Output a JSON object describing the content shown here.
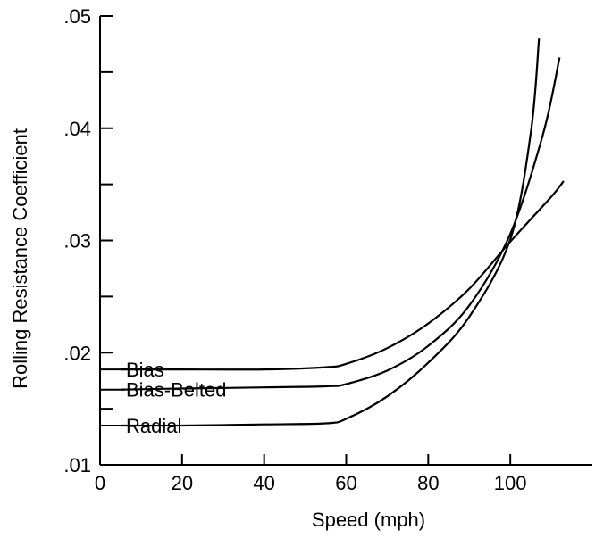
{
  "chart_data": {
    "type": "line",
    "xlabel": "Speed (mph)",
    "ylabel": "Rolling Resistance Coefficient",
    "xlim": [
      0,
      120
    ],
    "ylim": [
      0.01,
      0.05
    ],
    "x_ticks": [
      {
        "value": 0,
        "label": "0"
      },
      {
        "value": 20,
        "label": "20"
      },
      {
        "value": 40,
        "label": "40"
      },
      {
        "value": 60,
        "label": "60"
      },
      {
        "value": 80,
        "label": "80"
      },
      {
        "value": 100,
        "label": "100"
      }
    ],
    "y_ticks": [
      {
        "value": 0.01,
        "label": ".01"
      },
      {
        "value": 0.015,
        "label": ""
      },
      {
        "value": 0.02,
        "label": ".02"
      },
      {
        "value": 0.025,
        "label": ""
      },
      {
        "value": 0.03,
        "label": ".03"
      },
      {
        "value": 0.035,
        "label": ""
      },
      {
        "value": 0.04,
        "label": ".04"
      },
      {
        "value": 0.045,
        "label": ""
      },
      {
        "value": 0.05,
        "label": ".05"
      }
    ],
    "grid": false,
    "legend": "inline labels at left",
    "series": [
      {
        "name": "Bias",
        "x": [
          5,
          20,
          40,
          55,
          60,
          70,
          80,
          90,
          100,
          110,
          113
        ],
        "y": [
          0.0185,
          0.0185,
          0.0185,
          0.0187,
          0.019,
          0.0204,
          0.0226,
          0.0257,
          0.0299,
          0.0339,
          0.0353
        ]
      },
      {
        "name": "Bias-Belted",
        "x": [
          5,
          20,
          40,
          55,
          60,
          70,
          80,
          90,
          100,
          108,
          112
        ],
        "y": [
          0.0167,
          0.0168,
          0.0169,
          0.017,
          0.0172,
          0.0184,
          0.0206,
          0.0242,
          0.0306,
          0.0395,
          0.0463
        ]
      },
      {
        "name": "Radial",
        "x": [
          5,
          20,
          40,
          55,
          60,
          70,
          80,
          90,
          100,
          105,
          107
        ],
        "y": [
          0.0135,
          0.0135,
          0.0136,
          0.0137,
          0.0141,
          0.0161,
          0.0191,
          0.0232,
          0.0301,
          0.0396,
          0.048
        ]
      }
    ]
  }
}
